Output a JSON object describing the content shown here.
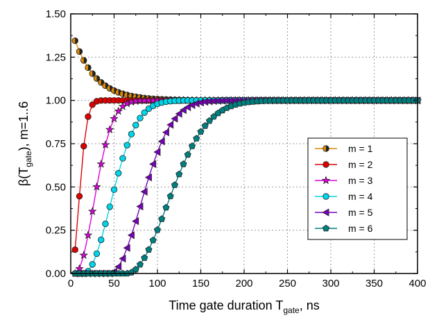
{
  "chart_data": {
    "type": "line",
    "title": "",
    "xlabel": {
      "main": "Time gate duration T",
      "sub": "gate",
      "suffix": ", ns"
    },
    "ylabel": {
      "main": "β(T",
      "sub": "gate",
      "suffix": "), m=1..6"
    },
    "xlim": [
      0,
      400
    ],
    "ylim": [
      0,
      1.5
    ],
    "x_ticks": [
      "0",
      "50",
      "100",
      "150",
      "200",
      "250",
      "300",
      "350",
      "400"
    ],
    "y_ticks": [
      "0.00",
      "0.25",
      "0.50",
      "0.75",
      "1.00",
      "1.25",
      "1.50"
    ],
    "grid": true,
    "legend_position": "right",
    "x_step": 5,
    "series": [
      {
        "name": "m = 1",
        "color": "#e08a00",
        "marker": "half-circle",
        "onset": 0,
        "start": 1.345,
        "tau": 25
      },
      {
        "name": "m = 2",
        "color": "#dd0000",
        "marker": "circle",
        "onset": 0,
        "start": 0.0,
        "tau": 13
      },
      {
        "name": "m = 3",
        "color": "#dd00dd",
        "marker": "star",
        "onset": 5,
        "start": 0.0,
        "tau": 30
      },
      {
        "name": "m = 4",
        "color": "#00d4e8",
        "marker": "circle",
        "onset": 15,
        "start": 0.0,
        "tau": 43
      },
      {
        "name": "m = 5",
        "color": "#7700bb",
        "marker": "triangle-left",
        "onset": 45,
        "start": 0.0,
        "tau": 50
      },
      {
        "name": "m = 6",
        "color": "#007f7f",
        "marker": "pentagon",
        "onset": 65,
        "start": 0.0,
        "tau": 65
      }
    ],
    "plateau": 1.0
  }
}
